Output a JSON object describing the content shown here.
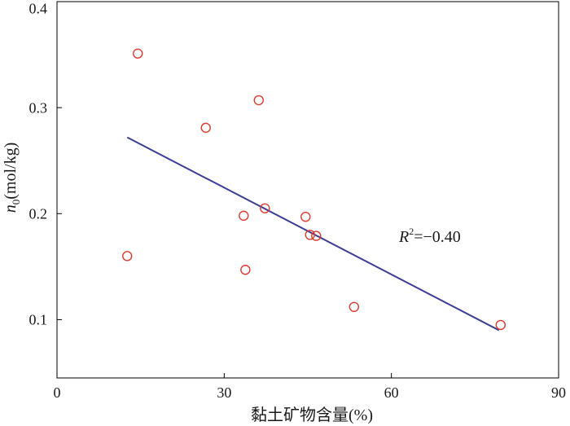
{
  "chart_data": {
    "type": "scatter",
    "xlabel": "黏土矿物含量(%)",
    "ylabel": {
      "var": "n",
      "sub": "0",
      "unit": "(mol/kg)"
    },
    "xlim": [
      0,
      90
    ],
    "ylim": [
      0.045,
      0.4
    ],
    "xticks": [
      "0",
      "30",
      "60",
      "90"
    ],
    "yticks": [
      "0.1",
      "0.2",
      "0.3",
      "0.4"
    ],
    "grid": false,
    "points": [
      {
        "x": 14.5,
        "y": 0.351
      },
      {
        "x": 36.2,
        "y": 0.307
      },
      {
        "x": 26.7,
        "y": 0.281
      },
      {
        "x": 37.3,
        "y": 0.205
      },
      {
        "x": 33.5,
        "y": 0.198
      },
      {
        "x": 44.6,
        "y": 0.197
      },
      {
        "x": 45.4,
        "y": 0.18
      },
      {
        "x": 46.5,
        "y": 0.179
      },
      {
        "x": 12.6,
        "y": 0.16
      },
      {
        "x": 33.8,
        "y": 0.147
      },
      {
        "x": 53.3,
        "y": 0.112
      },
      {
        "x": 79.6,
        "y": 0.095
      }
    ],
    "fit_line": {
      "x": [
        12.6,
        79.3
      ],
      "y": [
        0.272,
        0.09
      ]
    },
    "annotation": {
      "var": "R",
      "sup": "2",
      "value": "=−0.40"
    },
    "colors": {
      "marker": "#e03a2e",
      "line": "#3c3c96",
      "axis": "#000000"
    }
  }
}
